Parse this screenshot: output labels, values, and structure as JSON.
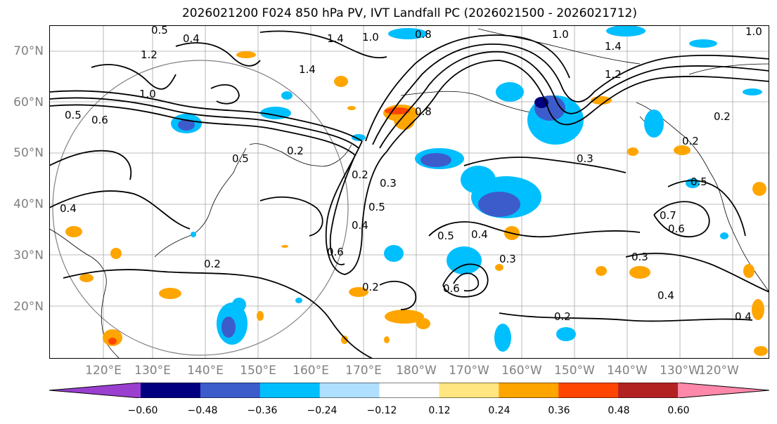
{
  "title": "2026021200 F024 850 hPa PV, IVT Landfall PC (2026021500 - 2026021712)",
  "latitude_labels": [
    "70°N",
    "60°N",
    "50°N",
    "40°N",
    "30°N",
    "20°N"
  ],
  "longitude_labels": [
    "120°E",
    "130°E",
    "140°E",
    "150°E",
    "160°E",
    "170°E",
    "180°W",
    "170°W",
    "160°W",
    "150°W",
    "140°W",
    "130°W",
    "120°W"
  ],
  "colorbar": {
    "ticks": [
      "−0.60",
      "−0.48",
      "−0.36",
      "−0.24",
      "−0.12",
      "0.12",
      "0.24",
      "0.36",
      "0.48",
      "0.60"
    ],
    "colors": [
      "#9a3fd0",
      "#000080",
      "#3c5ccc",
      "#00bfff",
      "#b0e0ff",
      "#ffffff",
      "#ffe680",
      "#ffa500",
      "#ff4500",
      "#b22222",
      "#ff88aa"
    ]
  },
  "contour_labels": [
    "0.5",
    "0.4",
    "1.4",
    "1.0",
    "0.8",
    "1.0",
    "1.4",
    "1.2",
    "1.4",
    "1.2",
    "1.0",
    "0.5",
    "0.6",
    "0.8",
    "0.5",
    "0.2",
    "0.6",
    "0.4",
    "0.5",
    "0.2",
    "0.3",
    "0.5",
    "0.4",
    "0.3",
    "0.6",
    "0.2",
    "0.2",
    "0.3",
    "0.4",
    "0.2",
    "0.3",
    "0.4",
    "0.6",
    "0.7",
    "0.5",
    "0.2",
    "0.4",
    "0.2",
    "1.0"
  ],
  "colors": {
    "positive_fill": "#ffa500",
    "negative_fill": "#3c5ccc",
    "contour": "#000000",
    "graticule": "#808080"
  }
}
